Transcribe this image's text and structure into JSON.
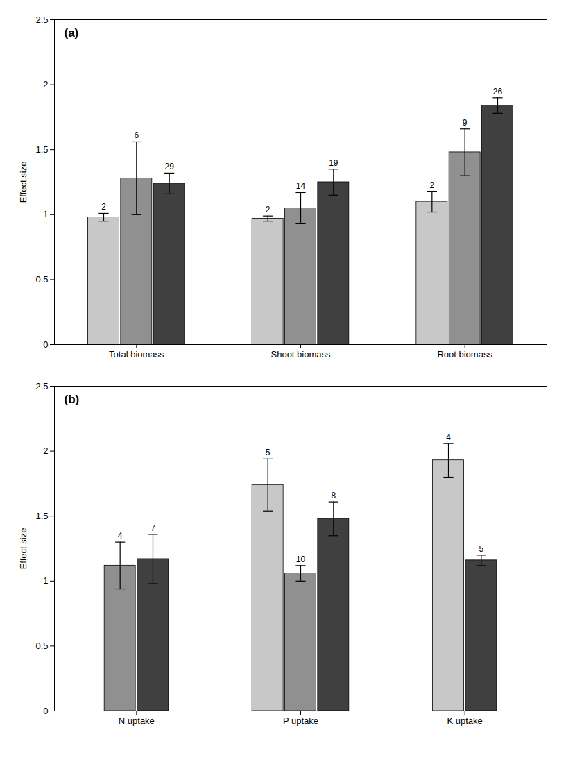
{
  "chart_data": [
    {
      "type": "bar",
      "title": "(a)",
      "categories": [
        "Total biomass",
        "Shoot biomass",
        "Root biomass"
      ],
      "series": [
        {
          "color": "#c8c8c8",
          "values": [
            0.98,
            0.97,
            1.1
          ],
          "errors": [
            0.03,
            0.02,
            0.08
          ],
          "n": [
            2,
            2,
            2
          ]
        },
        {
          "color": "#909090",
          "values": [
            1.28,
            1.05,
            1.48
          ],
          "errors": [
            0.28,
            0.12,
            0.18
          ],
          "n": [
            6,
            14,
            9
          ]
        },
        {
          "color": "#404040",
          "values": [
            1.24,
            1.25,
            1.84
          ],
          "errors": [
            0.08,
            0.1,
            0.06
          ],
          "n": [
            29,
            19,
            26
          ]
        }
      ],
      "ylabel": "Effect size",
      "ylim": [
        0,
        2.5
      ],
      "yticks": [
        0,
        0.5,
        1,
        1.5,
        2,
        2.5
      ],
      "grid": false
    },
    {
      "type": "bar",
      "title": "(b)",
      "categories": [
        "N uptake",
        "P uptake",
        "K uptake"
      ],
      "series": [
        {
          "color": "#c8c8c8",
          "values": [
            null,
            1.74,
            1.93
          ],
          "errors": [
            null,
            0.2,
            0.13
          ],
          "n": [
            null,
            5,
            4
          ]
        },
        {
          "color": "#909090",
          "values": [
            1.12,
            1.06,
            null
          ],
          "errors": [
            0.18,
            0.06,
            null
          ],
          "n": [
            4,
            10,
            null
          ]
        },
        {
          "color": "#404040",
          "values": [
            1.17,
            1.48,
            1.16
          ],
          "errors": [
            0.19,
            0.13,
            0.04
          ],
          "n": [
            7,
            8,
            5
          ]
        }
      ],
      "ylabel": "Effect size",
      "ylim": [
        0,
        2.5
      ],
      "yticks": [
        0,
        0.5,
        1,
        1.5,
        2,
        2.5
      ],
      "grid": false
    }
  ]
}
